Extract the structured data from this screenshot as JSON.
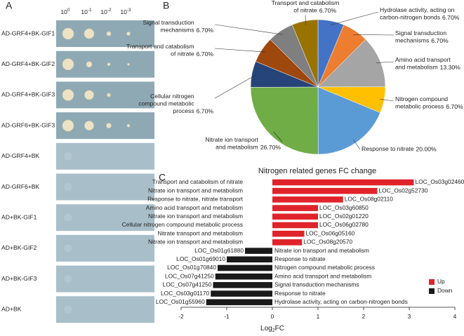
{
  "panel_labels": [
    "A",
    "B",
    "C"
  ],
  "panel_a": {
    "columns": [
      {
        "base": "10",
        "exponent": "0"
      },
      {
        "base": "10",
        "exponent": "-1"
      },
      {
        "base": "10",
        "exponent": "-2"
      },
      {
        "base": "10",
        "exponent": "-3"
      }
    ],
    "rows": [
      "AD-GRF4+BK-GIF1",
      "AD-GRF4+BK-GIF2",
      "AD-GRF4+BK-GIF3",
      "AD-GRF6+BK-GIF3",
      "AD-GRF4+BK",
      "AD-GRF6+BK",
      "AD+BK-GIF1",
      "AD+BK-GIF2",
      "AD+BK-GIF3",
      "AD+BK"
    ]
  },
  "chart_data": [
    {
      "type": "pie",
      "categories": [
        "Hydrolase activity, acting on carbon-nitrogen bonds",
        "Signal transduction mechanisms",
        "Amino acid transport and metabolism",
        "Nitrogen compound metabolic process",
        "Response to nitrate",
        "Nitrate ion transport and metabolism",
        "Cellular nitrogen compound metabolic process",
        "Transport and catabolism of nitrate",
        "Signal transduction mechanisms",
        "Transport and catabolism of nitrate"
      ],
      "values": [
        6.7,
        6.7,
        13.3,
        6.7,
        20.0,
        26.7,
        6.7,
        6.7,
        6.7,
        6.7
      ],
      "value_labels": [
        "6.70%",
        "6.70%",
        "13.30%",
        "6.70%",
        "20.00%",
        "26.70%",
        "6.70%",
        "6.70%",
        "6.70%",
        "6.70%"
      ],
      "colors": [
        "#4472c4",
        "#ed7d31",
        "#a5a5a5",
        "#ffc000",
        "#5b9bd5",
        "#70ad47",
        "#264478",
        "#9e480e",
        "#7f7f7f",
        "#997300"
      ]
    },
    {
      "type": "bar",
      "orientation": "horizontal",
      "title": "Nitrogen related genes FC change",
      "xlabel": {
        "text": "Log",
        "subscript": "2",
        "suffix": "FC"
      },
      "categories": [
        "LOC_Os03g02460",
        "LOC_Os02g52730",
        "LOC_Os08g02110",
        "LOC_Os03g60850",
        "LOC_Os02g01220",
        "LOC_Os06g02780",
        "LOC_Os06g05160",
        "LOC_Os08g20570",
        "LOC_Os01g61880",
        "LOC_Os01g69010",
        "LOC_Os01g70840",
        "LOC_Os07g41250",
        "LOC_Os07g41250",
        "LOC_Os03g01170",
        "LOC_Os01g55960"
      ],
      "functions": [
        "Transport and catabolism of nitrate",
        "Nitrate ion transport and metabolism",
        "Response to nitrate, nitrate transport",
        "Amino acid transport and metabolism",
        "Nitrate ion transport and metabolism",
        "Cellular nitrogen compound metabolic process",
        "Nitrate transport and metabolism",
        "Nitrate ion transport and metabolism",
        "Nitrate ion transport and metabolism",
        "Response to nitrate",
        "Nitrogen compound metabolic process",
        "Amino acid transport and metabolism",
        "Signal transduction mechanisms",
        "Response to nitrate",
        "Hydrolase activity, acting on carbon-nitrogen bonds"
      ],
      "series": [
        {
          "name": "Up",
          "color": "#e0232a",
          "values": [
            3.1,
            2.3,
            1.55,
            1.0,
            1.0,
            1.0,
            0.7,
            0.65,
            null,
            null,
            null,
            null,
            null,
            null,
            null
          ]
        },
        {
          "name": "Down",
          "color": "#1a1a1a",
          "values": [
            null,
            null,
            null,
            null,
            null,
            null,
            null,
            null,
            -0.6,
            -1.0,
            -1.2,
            -1.25,
            -1.3,
            -1.35,
            -1.45
          ]
        }
      ],
      "xlim": [
        -2,
        4
      ],
      "xticks": [
        -2,
        -1,
        0,
        1,
        2,
        3,
        4
      ],
      "legend": "bottom right"
    }
  ]
}
